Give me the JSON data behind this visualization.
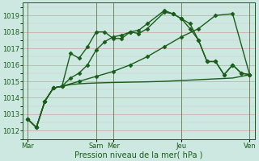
{
  "background_color": "#cce8e0",
  "grid_color_major": "#d4a0a0",
  "grid_color_minor": "#d4c8c8",
  "line_color": "#1a5c1a",
  "marker": "D",
  "markersize": 2.5,
  "linewidth": 1.0,
  "xlabel": "Pression niveau de la mer( hPa )",
  "xlabel_fontsize": 7,
  "ylim": [
    1011.5,
    1019.8
  ],
  "yticks": [
    1012,
    1013,
    1014,
    1015,
    1016,
    1017,
    1018,
    1019
  ],
  "ytick_fontsize": 6,
  "xtick_fontsize": 6,
  "xtick_labels": [
    "Mar",
    "Sam",
    "Mer",
    "Jeu",
    "Ven"
  ],
  "vline_positions": [
    0,
    4,
    5,
    9,
    13
  ],
  "series": [
    {
      "x": [
        0,
        0.5,
        1.0,
        1.5,
        2.0,
        2.5,
        3.0,
        3.5,
        4.0,
        4.5,
        5.0,
        5.5,
        6.0,
        6.5,
        7.0,
        8.0,
        8.5,
        9.0,
        9.5,
        10.0,
        10.5,
        11.0,
        11.5,
        12.0,
        12.5,
        13.0
      ],
      "y": [
        1012.7,
        1012.2,
        1013.8,
        1014.6,
        1014.7,
        1016.7,
        1016.4,
        1017.1,
        1018.0,
        1018.0,
        1017.6,
        1017.6,
        1018.0,
        1017.9,
        1018.2,
        1019.2,
        1019.1,
        1018.8,
        1018.2,
        1017.5,
        1016.2,
        1016.2,
        1015.4,
        1016.0,
        1015.5,
        1015.4
      ],
      "has_markers": true
    },
    {
      "x": [
        0,
        0.5,
        1.0,
        1.5,
        2.0,
        2.5,
        3.0,
        3.5,
        4.0,
        5.0,
        6.0,
        7.0,
        8.0,
        9.0,
        10.0,
        11.0,
        12.0,
        13.0
      ],
      "y": [
        1012.7,
        1012.2,
        1013.8,
        1014.6,
        1014.7,
        1014.8,
        1014.85,
        1014.88,
        1014.9,
        1014.93,
        1014.95,
        1014.97,
        1015.0,
        1015.05,
        1015.1,
        1015.15,
        1015.2,
        1015.4
      ],
      "has_markers": false
    },
    {
      "x": [
        0,
        0.5,
        1.0,
        1.5,
        2.0,
        2.5,
        3.0,
        3.5,
        4.0,
        4.5,
        5.0,
        5.5,
        6.0,
        6.5,
        7.0,
        8.0,
        8.5,
        9.0,
        9.5,
        10.0,
        10.5,
        11.0,
        11.5,
        12.0,
        12.5,
        13.0
      ],
      "y": [
        1012.7,
        1012.2,
        1013.8,
        1014.6,
        1014.7,
        1015.2,
        1015.5,
        1016.0,
        1016.9,
        1017.4,
        1017.7,
        1017.8,
        1018.0,
        1018.1,
        1018.5,
        1019.3,
        1019.1,
        1018.8,
        1018.5,
        1017.5,
        1016.2,
        1016.2,
        1015.4,
        1016.0,
        1015.5,
        1015.4
      ],
      "has_markers": true
    },
    {
      "x": [
        0,
        0.5,
        1.0,
        1.5,
        2.0,
        3.0,
        4.0,
        5.0,
        6.0,
        7.0,
        8.0,
        9.0,
        10.0,
        11.0,
        12.0,
        13.0
      ],
      "y": [
        1012.7,
        1012.2,
        1013.8,
        1014.6,
        1014.7,
        1015.0,
        1015.3,
        1015.6,
        1016.0,
        1016.5,
        1017.1,
        1017.7,
        1018.2,
        1019.0,
        1019.1,
        1015.4
      ],
      "has_markers": true
    }
  ]
}
